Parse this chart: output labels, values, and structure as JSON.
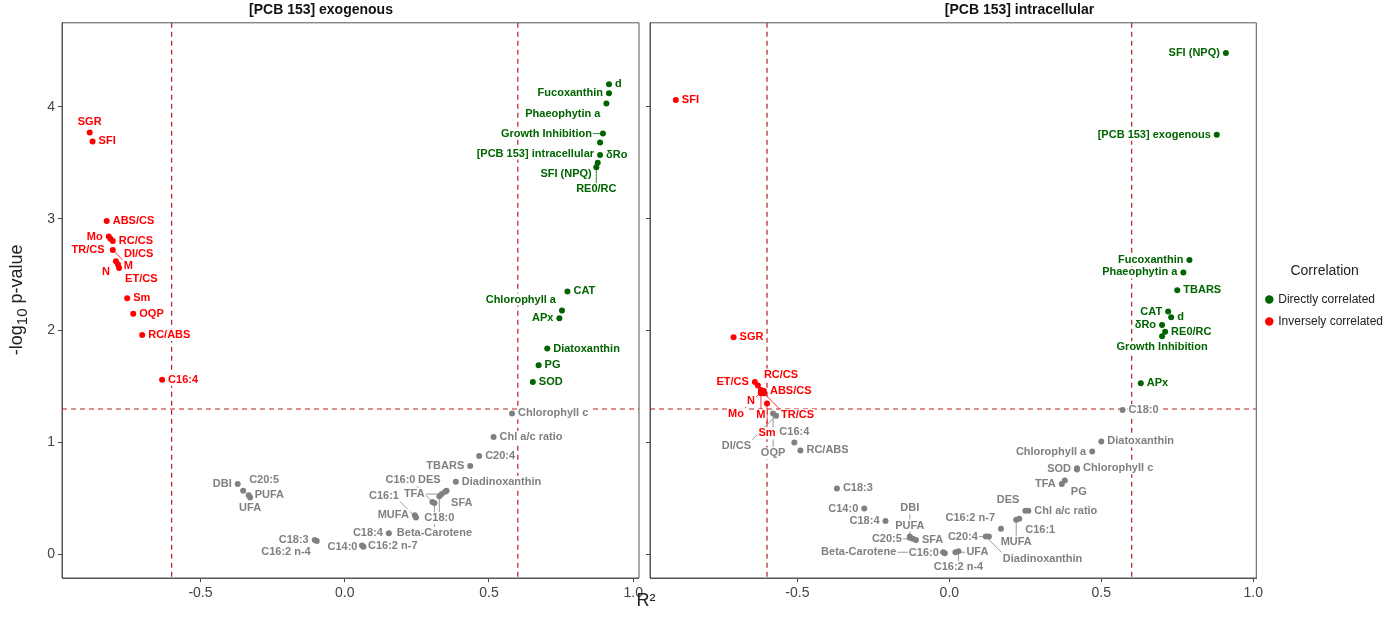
{
  "chart_data": [
    {
      "type": "scatter",
      "title": "[PCB 153] exogenous",
      "xlabel": "R²",
      "ylabel": "-log$_{10}$ p-value",
      "marker": "circle",
      "xlim": [
        -0.98,
        1.02
      ],
      "ylim": [
        -0.21,
        4.75
      ],
      "xticks": [
        {
          "value": -0.5,
          "label": "-0.5"
        },
        {
          "value": 0,
          "label": "0.0"
        },
        {
          "value": 0.5,
          "label": "0.5"
        },
        {
          "value": 1,
          "label": "1.0"
        }
      ],
      "yticks": [
        0,
        1,
        2,
        3,
        4
      ],
      "ref_lines": [
        {
          "axis": "x",
          "value": -0.6,
          "color": "#b22222",
          "line_style": "dashed"
        },
        {
          "axis": "x",
          "value": 0.6,
          "color": "#b22222",
          "line_style": "dashed"
        },
        {
          "axis": "y",
          "value": 1.3,
          "color": "#b22222",
          "line_style": "dashed"
        }
      ],
      "series": [
        {
          "color": "#006400",
          "x": [
            0.916,
            0.916,
            0.907,
            0.895,
            0.885,
            0.885,
            0.877,
            0.872,
            0.772,
            0.753,
            0.744,
            0.702,
            0.672,
            0.652
          ],
          "values": [
            4.2,
            4.12,
            4.03,
            3.76,
            3.68,
            3.57,
            3.5,
            3.46,
            2.35,
            2.18,
            2.11,
            1.84,
            1.69,
            1.54
          ],
          "value_labels": [
            "d",
            "Fucoxanthin",
            "Phaeophytin a",
            "Growth Inhibition",
            "[PCB 153] intracellular",
            "δRo",
            "SFI (NPQ)",
            "RE0/RC",
            "CAT",
            "Chlorophyll a",
            "APx",
            "Diatoxanthin",
            "PG",
            "SOD"
          ]
        },
        {
          "color": "#ff0000",
          "x": [
            -0.884,
            -0.874,
            -0.825,
            -0.818,
            -0.812,
            -0.804,
            -0.804,
            -0.793,
            -0.786,
            -0.782,
            -0.754,
            -0.733,
            -0.702,
            -0.633
          ],
          "values": [
            3.77,
            3.69,
            2.98,
            2.84,
            2.82,
            2.8,
            2.72,
            2.62,
            2.59,
            2.56,
            2.29,
            2.15,
            1.96,
            1.56
          ],
          "value_labels": [
            "SGR",
            "SFI",
            "ABS/CS",
            "Mo",
            "TR/CS",
            "RC/CS",
            "M",
            "N",
            "DI/CS",
            "ET/CS",
            "Sm",
            "OQP",
            "RC/ABS",
            "C16:4"
          ]
        },
        {
          "color": "#808080",
          "x": [
            0.58,
            0.516,
            0.466,
            0.435,
            0.385,
            0.353,
            0.348,
            0.336,
            0.328,
            0.311,
            0.304,
            0.243,
            0.247,
            0.153,
            0.06,
            0.065,
            -0.104,
            -0.097,
            -0.371,
            -0.352,
            -0.333,
            -0.328
          ],
          "values": [
            1.26,
            1.05,
            0.88,
            0.79,
            0.65,
            0.57,
            0.56,
            0.54,
            0.52,
            0.46,
            0.47,
            0.35,
            0.33,
            0.19,
            0.08,
            0.07,
            0.13,
            0.12,
            0.63,
            0.57,
            0.53,
            0.51
          ],
          "value_labels": [
            "Chlorophyll c",
            "Chl a/c ratio",
            "C20:4",
            "TBARS",
            "Diadinoxanthin",
            "DES",
            "SFA",
            "TFA",
            "C18:0",
            "Beta-Carotene",
            "C16:0",
            "MUFA",
            "C16:1",
            "C18:4",
            "C16:2 n-7",
            "C14:0",
            "C18:3",
            "C16:2 n-4",
            "DBI",
            "C20:5",
            "PUFA",
            "UFA"
          ]
        }
      ]
    },
    {
      "type": "scatter",
      "title": "[PCB 153] intracellular",
      "marker": "circle",
      "legend": "right",
      "legend_title": "Correlation",
      "tick_labels": "x",
      "xlim": [
        -0.985,
        1.01
      ],
      "ylim": [
        -0.21,
        4.75
      ],
      "xticks": [
        {
          "value": -0.5,
          "label": "-0.5"
        },
        {
          "value": 0,
          "label": "0.0"
        },
        {
          "value": 0.5,
          "label": "0.5"
        },
        {
          "value": 1,
          "label": "1.0"
        }
      ],
      "yticks": [
        0,
        1,
        2,
        3,
        4
      ],
      "ref_lines": [
        {
          "axis": "x",
          "value": -0.6,
          "color": "#b22222",
          "line_style": "dashed"
        },
        {
          "axis": "x",
          "value": 0.6,
          "color": "#b22222",
          "line_style": "dashed"
        },
        {
          "axis": "y",
          "value": 1.3,
          "color": "#b22222",
          "line_style": "dashed"
        }
      ],
      "series": [
        {
          "name": "Directly correlated",
          "color": "#006400",
          "x": [
            0.91,
            0.88,
            0.79,
            0.77,
            0.75,
            0.72,
            0.73,
            0.7,
            0.71,
            0.7,
            0.63
          ],
          "values": [
            4.48,
            3.75,
            2.63,
            2.52,
            2.36,
            2.17,
            2.12,
            2.05,
            1.99,
            1.95,
            1.53
          ],
          "value_labels": [
            "SFI (NPQ)",
            "[PCB 153] exogenous",
            "Fucoxanthin",
            "Phaeophytin a",
            "TBARS",
            "CAT",
            "d",
            "δRo",
            "RE0/RC",
            "Growth Inhibition",
            "APx"
          ]
        },
        {
          "name": "Inversely correlated",
          "color": "#ff0000",
          "x": [
            -0.9,
            -0.71,
            -0.64,
            -0.63,
            -0.62,
            -0.61,
            -0.62,
            -0.62,
            -0.61,
            -0.6
          ],
          "values": [
            4.06,
            1.94,
            1.54,
            1.51,
            1.47,
            1.46,
            1.44,
            1.45,
            1.44,
            1.35
          ],
          "value_labels": [
            "SFI",
            "SGR",
            "ET/CS",
            "RC/CS",
            "N",
            "ABS/CS",
            "M",
            "Mo",
            "TR/CS",
            "Sm"
          ]
        },
        {
          "color": "#808080",
          "x": [
            0.57,
            0.5,
            0.47,
            0.42,
            0.42,
            0.38,
            0.37,
            0.26,
            0.25,
            0.23,
            0.22,
            0.17,
            0.13,
            0.12,
            0.03,
            0.02,
            -0.015,
            -0.02,
            -0.11,
            -0.12,
            -0.13,
            -0.13,
            -0.21,
            -0.28,
            -0.37,
            -0.49,
            -0.51,
            -0.57,
            -0.58
          ],
          "values": [
            1.29,
            1.01,
            0.92,
            0.77,
            0.76,
            0.66,
            0.63,
            0.39,
            0.39,
            0.32,
            0.31,
            0.23,
            0.16,
            0.16,
            0.03,
            0.02,
            0.01,
            0.02,
            0.13,
            0.14,
            0.16,
            0.15,
            0.3,
            0.41,
            0.59,
            0.93,
            1.0,
            1.24,
            1.26
          ],
          "value_labels": [
            "C18:0",
            "Diatoxanthin",
            "Chlorophyll a",
            "Chlorophyll c",
            "SOD",
            "PG",
            "TFA",
            "Chl a/c ratio",
            "DES",
            "C16:1",
            "MUFA",
            "C16:2 n-7",
            "C20:4",
            "Diadinoxanthin",
            "C16:2 n-4",
            "UFA",
            "C16:0",
            "Beta-Carotene",
            "SFA",
            "C20:5",
            "PUFA",
            "DBI",
            "C18:4",
            "C14:0",
            "C18:3",
            "RC/ABS",
            "C16:4",
            "DI/CS",
            "OQP"
          ]
        }
      ]
    }
  ]
}
